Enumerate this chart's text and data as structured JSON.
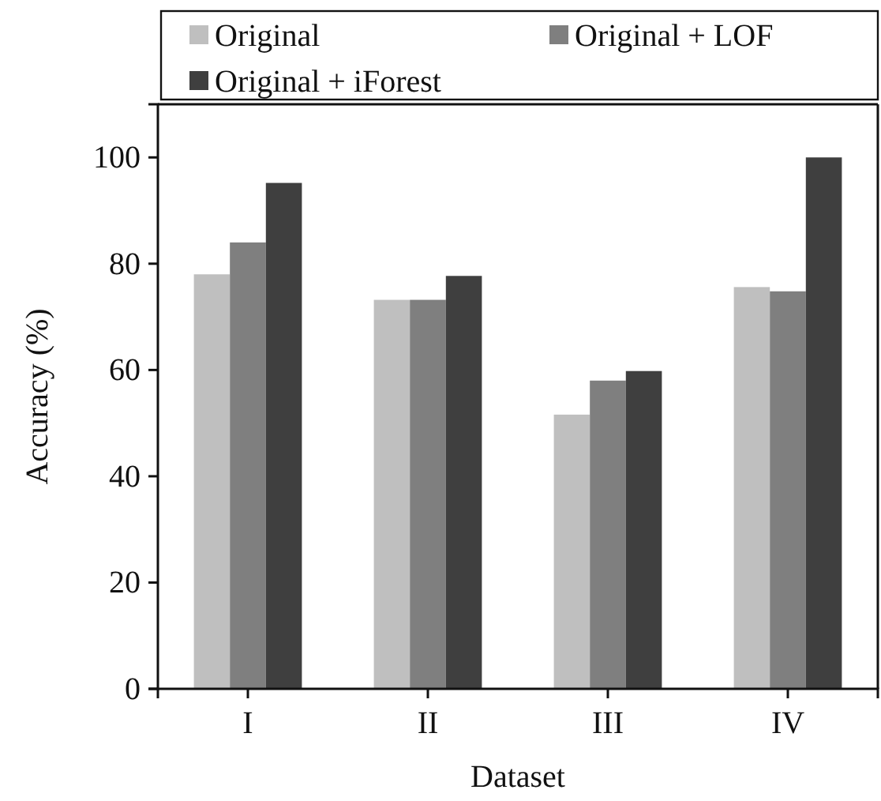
{
  "chart_data": {
    "type": "bar",
    "xlabel": "Dataset",
    "ylabel": "Accuracy (%)",
    "categories": [
      "I",
      "II",
      "III",
      "IV"
    ],
    "series": [
      {
        "name": "Original",
        "color": "#bfbfbf",
        "values": [
          78,
          73.2,
          51.6,
          75.6
        ]
      },
      {
        "name": "Original + LOF",
        "color": "#7f7f7f",
        "values": [
          84,
          73.2,
          58,
          74.8
        ]
      },
      {
        "name": "Original + iForest",
        "color": "#3f3f3f",
        "values": [
          95.2,
          77.7,
          59.8,
          100
        ]
      }
    ],
    "ylim": [
      0,
      110
    ],
    "yticks": [
      0,
      20,
      40,
      60,
      80,
      100
    ],
    "grid": false,
    "legend": "top"
  }
}
